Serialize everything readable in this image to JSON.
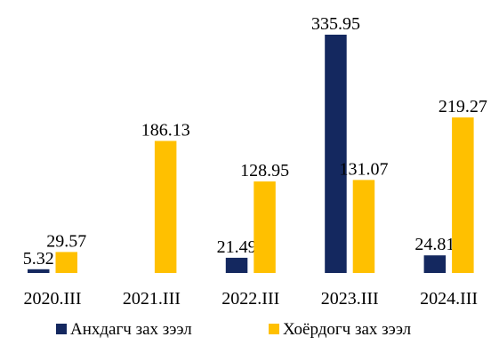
{
  "chart_data": {
    "type": "bar",
    "categories": [
      "2020.III",
      "2021.III",
      "2022.III",
      "2023.III",
      "2024.III"
    ],
    "series": [
      {
        "name": "Анхдагч зах зээл",
        "color": "#14285F",
        "values": [
          5.32,
          null,
          21.49,
          335.95,
          24.81
        ],
        "labels": [
          "5.32",
          "",
          "21.49",
          "335.95",
          "24.81"
        ]
      },
      {
        "name": "Хоёрдогч зах зээл",
        "color": "#FFC000",
        "values": [
          29.57,
          186.13,
          128.95,
          131.07,
          219.27
        ],
        "labels": [
          "29.57",
          "186.13",
          "128.95",
          "131.07",
          "219.27"
        ]
      }
    ],
    "ylim": [
      0,
      335.95
    ],
    "grid": false,
    "legend": "bottom",
    "axes_visible": false
  }
}
